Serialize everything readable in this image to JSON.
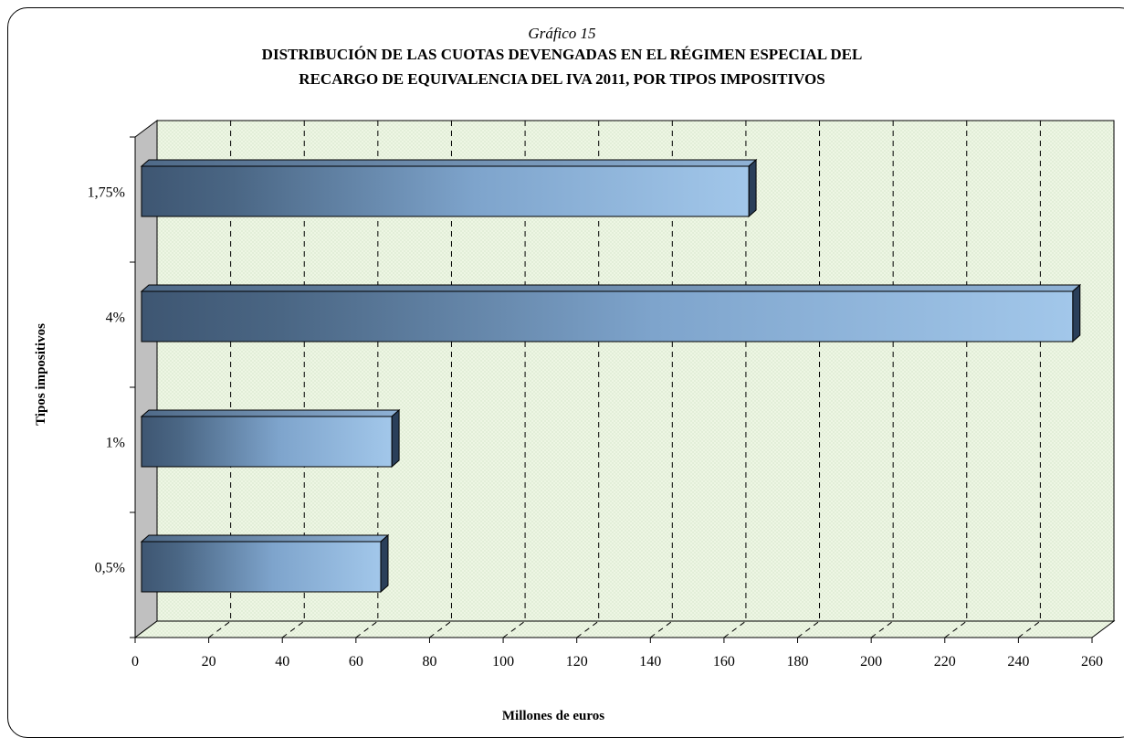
{
  "chart_data": {
    "type": "bar",
    "orientation": "horizontal",
    "subtitle": "Gráfico 15",
    "title_line1": "DISTRIBUCIÓN DE LAS CUOTAS DEVENGADAS EN EL RÉGIMEN ESPECIAL DEL",
    "title_line2": "RECARGO DE EQUIVALENCIA DEL IVA 2011, POR TIPOS IMPOSITIVOS",
    "xlabel": "Millones de euros",
    "ylabel": "Tipos impositivos",
    "categories": [
      "0,5%",
      "1%",
      "4%",
      "1,75%"
    ],
    "values": [
      65,
      68,
      253,
      165
    ],
    "xlim": [
      0,
      260
    ],
    "xticks": [
      0,
      20,
      40,
      60,
      80,
      100,
      120,
      140,
      160,
      180,
      200,
      220,
      240,
      260
    ],
    "grid": "vertical dashed",
    "colors": {
      "bar_dark": "#3e5672",
      "bar_light": "#9cc4e8",
      "bar_end": "#2a3f5a",
      "plot_bg": "#eef6e4",
      "side_wall": "#c0c0c0"
    }
  }
}
